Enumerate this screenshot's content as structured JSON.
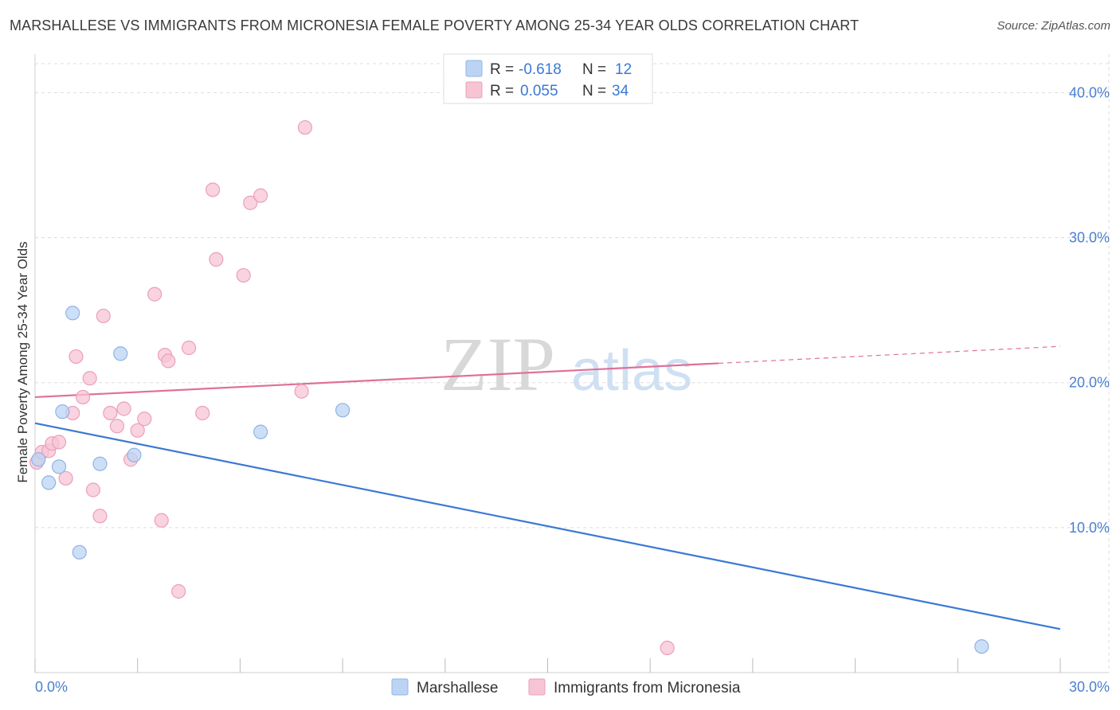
{
  "title": "MARSHALLESE VS IMMIGRANTS FROM MICRONESIA FEMALE POVERTY AMONG 25-34 YEAR OLDS CORRELATION CHART",
  "source": "Source: ZipAtlas.com",
  "watermark": {
    "zip": "ZIP",
    "atlas": "atlas"
  },
  "colors": {
    "blue": "#3b78d4",
    "blue_fill": "#bcd4f3",
    "pink": "#e07098",
    "pink_fill": "#f7c4d4",
    "grid": "#dddddd",
    "tick_text": "#4a7fd0"
  },
  "legend_top": [
    {
      "r_label": "R =",
      "r_value": "-0.618",
      "n_label": "N =",
      "n_value": "12",
      "series": "Marshallese"
    },
    {
      "r_label": "R =",
      "r_value": "0.055",
      "n_label": "N =",
      "n_value": "34",
      "series": "Immigrants from Micronesia"
    }
  ],
  "chart_data": {
    "type": "scatter",
    "title": "MARSHALLESE VS IMMIGRANTS FROM MICRONESIA FEMALE POVERTY AMONG 25-34 YEAR OLDS CORRELATION CHART",
    "xlabel": "",
    "ylabel": "Female Poverty Among 25-34 Year Olds",
    "xlim": [
      0,
      30
    ],
    "ylim": [
      0,
      42
    ],
    "x_tick_labels": [
      "0.0%",
      "30.0%"
    ],
    "y_ticks": [
      10,
      20,
      30,
      40
    ],
    "y_tick_labels": [
      "10.0%",
      "20.0%",
      "30.0%",
      "40.0%"
    ],
    "grid": true,
    "legend_position": "bottom",
    "series": [
      {
        "name": "Marshallese",
        "color": "#3b78d4",
        "points": [
          {
            "x": 0.1,
            "y": 14.7
          },
          {
            "x": 0.4,
            "y": 13.1
          },
          {
            "x": 0.7,
            "y": 14.2
          },
          {
            "x": 0.8,
            "y": 18.0
          },
          {
            "x": 1.1,
            "y": 24.8
          },
          {
            "x": 1.3,
            "y": 8.3
          },
          {
            "x": 1.9,
            "y": 14.4
          },
          {
            "x": 2.5,
            "y": 22.0
          },
          {
            "x": 2.9,
            "y": 15.0
          },
          {
            "x": 6.6,
            "y": 16.6
          },
          {
            "x": 9.0,
            "y": 18.1
          },
          {
            "x": 27.7,
            "y": 1.8
          }
        ],
        "trend": {
          "x": [
            0,
            30
          ],
          "y": [
            17.2,
            3.0
          ],
          "dashed_from": null
        }
      },
      {
        "name": "Immigrants from Micronesia",
        "color": "#e07098",
        "points": [
          {
            "x": 0.05,
            "y": 14.5
          },
          {
            "x": 0.2,
            "y": 15.2
          },
          {
            "x": 0.4,
            "y": 15.3
          },
          {
            "x": 0.5,
            "y": 15.8
          },
          {
            "x": 0.7,
            "y": 15.9
          },
          {
            "x": 0.9,
            "y": 13.4
          },
          {
            "x": 1.1,
            "y": 17.9
          },
          {
            "x": 1.2,
            "y": 21.8
          },
          {
            "x": 1.4,
            "y": 19.0
          },
          {
            "x": 1.6,
            "y": 20.3
          },
          {
            "x": 1.7,
            "y": 12.6
          },
          {
            "x": 1.9,
            "y": 10.8
          },
          {
            "x": 2.0,
            "y": 24.6
          },
          {
            "x": 2.2,
            "y": 17.9
          },
          {
            "x": 2.4,
            "y": 17.0
          },
          {
            "x": 2.6,
            "y": 18.2
          },
          {
            "x": 2.8,
            "y": 14.7
          },
          {
            "x": 3.0,
            "y": 16.7
          },
          {
            "x": 3.2,
            "y": 17.5
          },
          {
            "x": 3.5,
            "y": 26.1
          },
          {
            "x": 3.7,
            "y": 10.5
          },
          {
            "x": 3.8,
            "y": 21.9
          },
          {
            "x": 3.9,
            "y": 21.5
          },
          {
            "x": 4.2,
            "y": 5.6
          },
          {
            "x": 4.5,
            "y": 22.4
          },
          {
            "x": 4.9,
            "y": 17.9
          },
          {
            "x": 5.2,
            "y": 33.3
          },
          {
            "x": 5.3,
            "y": 28.5
          },
          {
            "x": 6.1,
            "y": 27.4
          },
          {
            "x": 6.3,
            "y": 32.4
          },
          {
            "x": 6.6,
            "y": 32.9
          },
          {
            "x": 7.8,
            "y": 19.4
          },
          {
            "x": 7.9,
            "y": 37.6
          },
          {
            "x": 18.5,
            "y": 1.7
          }
        ],
        "trend": {
          "x": [
            0,
            30
          ],
          "y": [
            19.0,
            22.5
          ],
          "dashed_from": 20
        }
      }
    ]
  }
}
